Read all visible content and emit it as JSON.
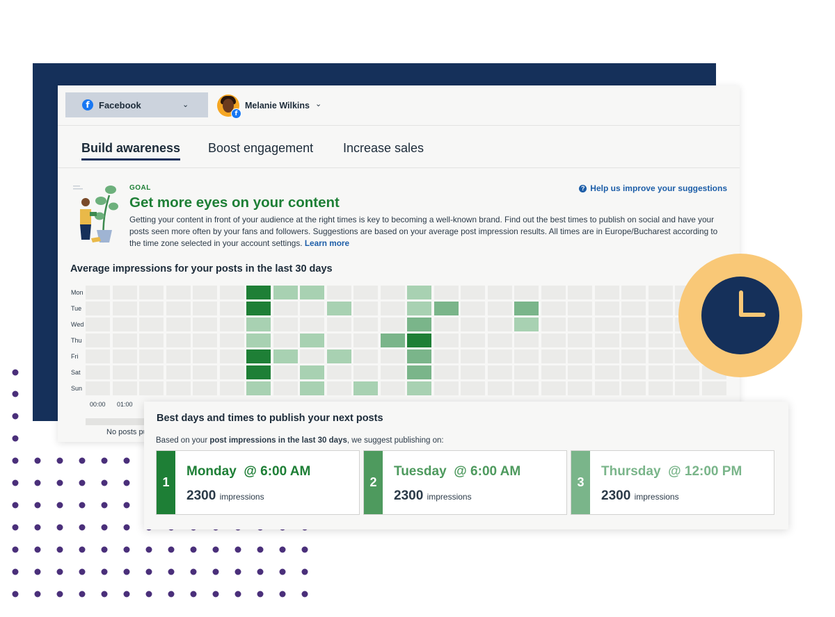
{
  "colors": {
    "navy": "#15305a",
    "green_dark": "#1e7f36",
    "green_mid": "#4e9a5e",
    "green_light": "#7ab58a",
    "link_blue": "#1d5ea8",
    "clock_yellow": "#f9c877",
    "dot_purple": "#4a2f7a"
  },
  "topbar": {
    "network_label": "Facebook",
    "network_icon": "facebook-icon",
    "account_name": "Melanie Wilkins"
  },
  "tabs": [
    {
      "label": "Build awareness",
      "active": true
    },
    {
      "label": "Boost engagement",
      "active": false
    },
    {
      "label": "Increase sales",
      "active": false
    }
  ],
  "goal": {
    "kicker": "GOAL",
    "title": "Get more eyes on your content",
    "description": "Getting your content in front of your audience at the right times is key to becoming a well-known brand. Find out the best times to publish on social and have your posts seen more often by your fans and followers. Suggestions are based on your average post impression results. All times are in Europe/Bucharest according to the time zone selected in your account settings.",
    "learn_more": "Learn more",
    "help_link": "Help us improve your suggestions"
  },
  "heatmap": {
    "title_prefix": "Average ",
    "title_emphasis": "impressions",
    "title_suffix": " for your posts in the last 30 days",
    "days": [
      "Mon",
      "Tue",
      "Wed",
      "Thu",
      "Fri",
      "Sat",
      "Sun"
    ],
    "hour_labels": [
      "00:00",
      "01:00"
    ],
    "levels": [
      [
        0,
        0,
        0,
        0,
        0,
        0,
        4,
        1,
        1,
        0,
        0,
        0,
        1,
        0,
        0,
        0,
        0,
        0,
        0,
        0,
        0,
        0,
        0,
        0
      ],
      [
        0,
        0,
        0,
        0,
        0,
        0,
        4,
        0,
        0,
        1,
        0,
        0,
        1,
        2,
        0,
        0,
        2,
        0,
        0,
        0,
        0,
        0,
        0,
        0
      ],
      [
        0,
        0,
        0,
        0,
        0,
        0,
        1,
        0,
        0,
        0,
        0,
        0,
        2,
        0,
        0,
        0,
        1,
        0,
        0,
        0,
        0,
        0,
        0,
        0
      ],
      [
        0,
        0,
        0,
        0,
        0,
        0,
        1,
        0,
        1,
        0,
        0,
        2,
        4,
        0,
        0,
        0,
        0,
        0,
        0,
        0,
        0,
        0,
        0,
        0
      ],
      [
        0,
        0,
        0,
        0,
        0,
        0,
        4,
        1,
        0,
        1,
        0,
        0,
        2,
        0,
        0,
        0,
        0,
        0,
        0,
        0,
        0,
        0,
        0,
        0
      ],
      [
        0,
        0,
        0,
        0,
        0,
        0,
        4,
        0,
        1,
        0,
        0,
        0,
        2,
        0,
        0,
        0,
        0,
        0,
        0,
        0,
        0,
        0,
        0,
        0
      ],
      [
        0,
        0,
        0,
        0,
        0,
        0,
        1,
        0,
        1,
        0,
        1,
        0,
        1,
        0,
        0,
        0,
        0,
        0,
        0,
        0,
        0,
        0,
        0,
        0
      ]
    ],
    "empty_note": "No posts pu"
  },
  "best_times": {
    "title": "Best days and times to publish your next posts",
    "subtitle_prefix": "Based on your ",
    "subtitle_bold": "post impressions in the last 30 days",
    "subtitle_suffix": ", we suggest publishing on:",
    "slots": [
      {
        "rank": "1",
        "day": "Monday",
        "time": "@ 6:00 AM",
        "impressions": "2300",
        "unit": "impressions",
        "color": "#1e7f36"
      },
      {
        "rank": "2",
        "day": "Tuesday",
        "time": "@ 6:00 AM",
        "impressions": "2300",
        "unit": "impressions",
        "color": "#4e9a5e"
      },
      {
        "rank": "3",
        "day": "Thursday",
        "time": "@ 12:00 PM",
        "impressions": "2300",
        "unit": "impressions",
        "color": "#7ab58a"
      }
    ]
  }
}
